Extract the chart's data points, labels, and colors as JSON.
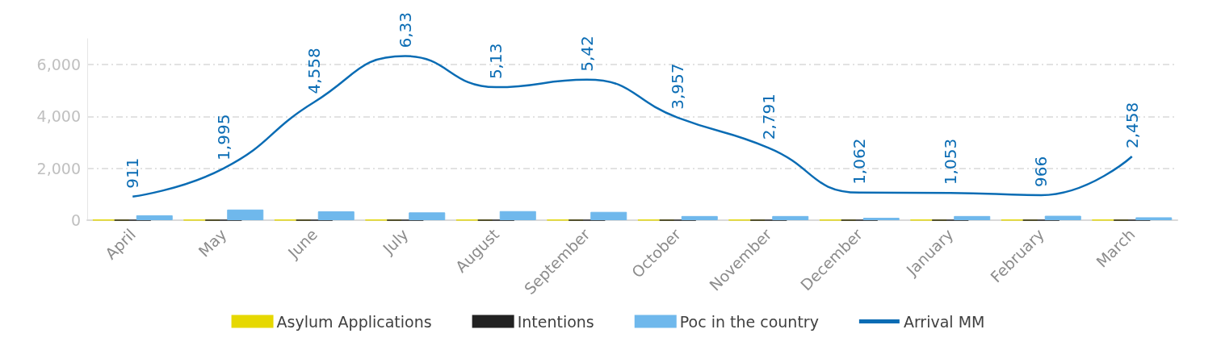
{
  "chart_data": {
    "type": "bar",
    "categories": [
      "April",
      "May",
      "June",
      "July",
      "August",
      "September",
      "October",
      "November",
      "December",
      "January",
      "February",
      "March"
    ],
    "series": [
      {
        "name": "Asylum Applications",
        "color": "#e6d800",
        "values": [
          10,
          10,
          10,
          10,
          10,
          10,
          10,
          10,
          10,
          10,
          10,
          10
        ]
      },
      {
        "name": "Intentions",
        "color": "#222222",
        "values": [
          0,
          0,
          0,
          0,
          0,
          0,
          0,
          0,
          0,
          0,
          0,
          0
        ]
      },
      {
        "name": "Poc in the country",
        "color": "#6fb8ec",
        "values": [
          190,
          410,
          340,
          300,
          350,
          320,
          160,
          160,
          90,
          160,
          170,
          110
        ]
      },
      {
        "name": "Arrival MM",
        "type": "line",
        "color": "#0a6cb4",
        "values": [
          911,
          1995,
          4558,
          6330,
          5130,
          5420,
          3957,
          2791,
          1062,
          1053,
          966,
          2458
        ],
        "value_labels": [
          "911",
          "1,995",
          "4,558",
          null,
          null,
          null,
          "3,957",
          "2,791",
          "1,062",
          "1,053",
          "966",
          "2,458"
        ]
      }
    ],
    "annotations": [
      {
        "text": "6,33",
        "x": "July",
        "y": 6330
      },
      {
        "text": "5,13",
        "x": "August",
        "y": 5130
      },
      {
        "text": "5,42",
        "x": "September",
        "y": 5420
      }
    ],
    "ylim": [
      0,
      7000
    ],
    "yticks": [
      0,
      {
        "value": 2000,
        "label": "2,000"
      },
      {
        "value": 4000,
        "label": "4,000"
      },
      {
        "value": 6000,
        "label": "6,000"
      }
    ],
    "grid": "y",
    "legend": "bottom",
    "marker": "none"
  }
}
